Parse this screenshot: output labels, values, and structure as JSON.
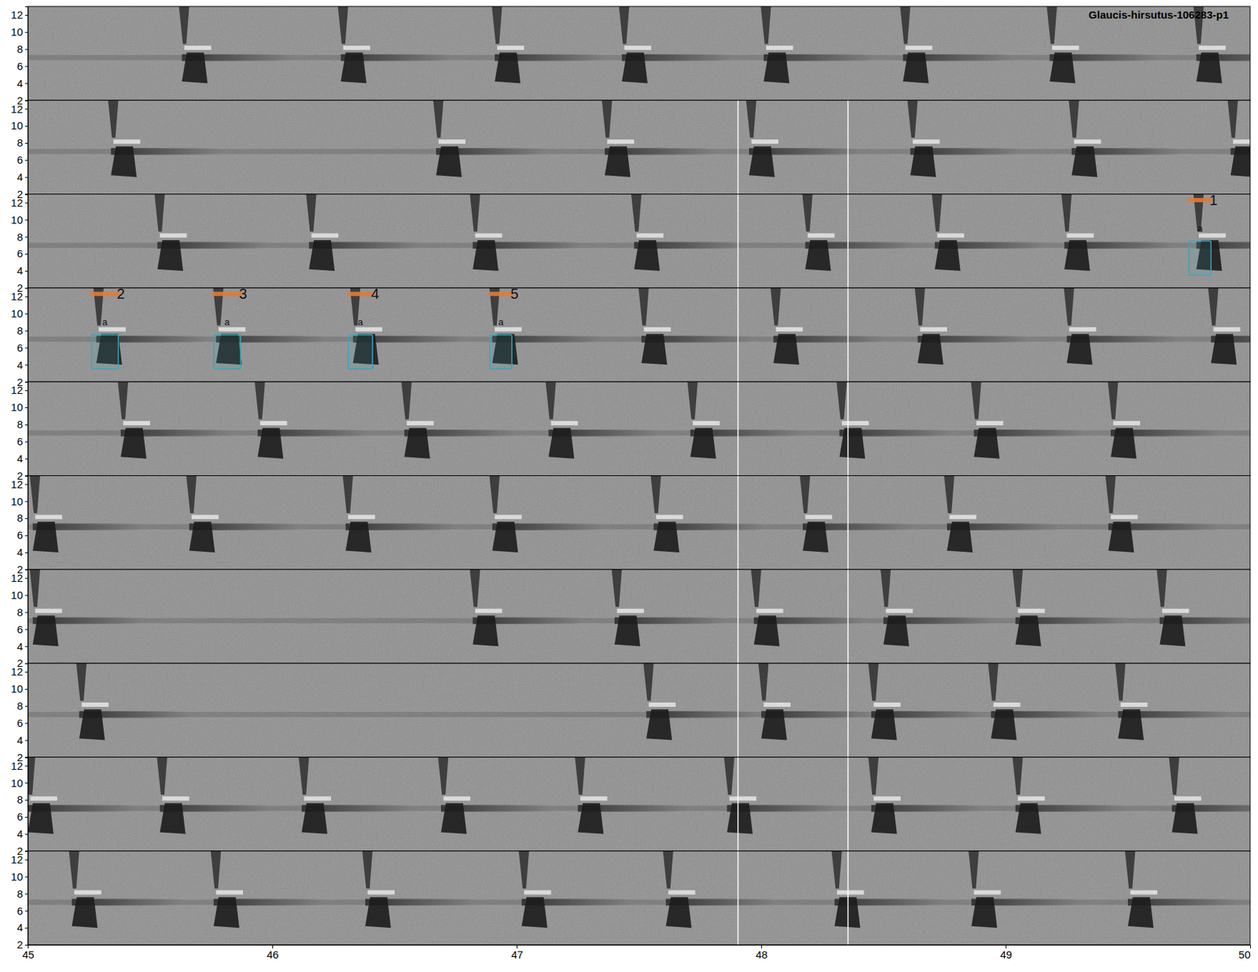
{
  "chart_data": {
    "type": "spectrogram",
    "title": "Glaucis-hirsutus-106283-p1",
    "xlim": [
      45,
      50
    ],
    "xticks": [
      45,
      46,
      47,
      48,
      49,
      50
    ],
    "ylim": [
      2,
      13
    ],
    "yticks": [
      2,
      4,
      6,
      8,
      10,
      12
    ],
    "calls": [
      [
        45.63,
        46.28,
        46.91,
        47.43,
        48.01,
        48.58,
        49.18,
        49.78
      ],
      [
        45.34,
        46.67,
        47.36,
        47.95,
        48.61,
        49.27,
        49.92
      ],
      [
        45.53,
        46.15,
        46.82,
        47.48,
        48.18,
        48.71,
        49.24,
        49.78
      ],
      [
        45.28,
        45.77,
        46.33,
        46.9,
        47.51,
        48.05,
        48.64,
        49.25,
        49.84
      ],
      [
        45.38,
        45.94,
        46.54,
        47.13,
        47.71,
        48.32,
        48.87,
        49.43
      ],
      [
        45.02,
        45.66,
        46.3,
        46.9,
        47.56,
        48.17,
        48.76,
        49.42
      ],
      [
        45.02,
        46.82,
        47.4,
        47.97,
        48.5,
        49.04,
        49.63
      ],
      [
        45.21,
        47.53,
        48.0,
        48.45,
        48.94,
        49.46
      ],
      [
        45.0,
        45.54,
        46.12,
        46.69,
        47.25,
        47.86,
        48.45,
        49.04,
        49.68
      ],
      [
        45.18,
        45.76,
        46.38,
        47.02,
        47.61,
        48.3,
        48.86,
        49.5
      ]
    ],
    "markers": [
      47.905,
      48.355
    ],
    "selections": [
      {
        "row": 3,
        "label": "1",
        "class": "a",
        "start": 49.75,
        "end": 49.84,
        "flow": 3.5,
        "fhigh": 7.5,
        "bar_freq": 12.3
      },
      {
        "row": 4,
        "label": "2",
        "class": "a",
        "start": 45.26,
        "end": 45.37,
        "flow": 3.5,
        "fhigh": 7.5,
        "bar_freq": 12.3
      },
      {
        "row": 4,
        "label": "3",
        "class": "a",
        "start": 45.76,
        "end": 45.87,
        "flow": 3.5,
        "fhigh": 7.5,
        "bar_freq": 12.3
      },
      {
        "row": 4,
        "label": "4",
        "class": "a",
        "start": 46.31,
        "end": 46.41,
        "flow": 3.5,
        "fhigh": 7.5,
        "bar_freq": 12.3
      },
      {
        "row": 4,
        "label": "5",
        "class": "a",
        "start": 46.89,
        "end": 46.98,
        "flow": 3.5,
        "fhigh": 7.5,
        "bar_freq": 12.3
      }
    ]
  }
}
